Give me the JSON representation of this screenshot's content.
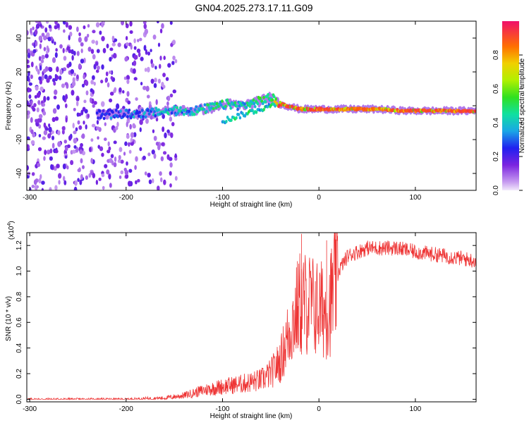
{
  "title": "GN04.2025.273.17.11.G09",
  "chart_data": [
    {
      "type": "heatmap",
      "name": "spectrogram",
      "xlabel": "Height of straight line (km)",
      "ylabel": "Frequency (Hz)",
      "xlim": [
        -303,
        163
      ],
      "ylim": [
        -50,
        50
      ],
      "x_ticks": [
        -300,
        -200,
        -100,
        0,
        100
      ],
      "y_ticks": [
        -40,
        -20,
        0,
        20,
        40
      ],
      "tick_labels_x": [
        "-300",
        "-200",
        "-100",
        "0",
        "100"
      ],
      "tick_labels_y": [
        "-40",
        "-20",
        "0",
        "20",
        "40"
      ],
      "colorbar": {
        "label": "Normalized spectral amplitude",
        "range": [
          0,
          1
        ],
        "ticks": [
          "0.0",
          "0.2",
          "0.4",
          "0.6",
          "0.8"
        ],
        "tick_values": [
          0,
          0.2,
          0.4,
          0.6,
          0.8
        ]
      },
      "ridge": [
        {
          "x": -230,
          "f": -5,
          "a": 0.3
        },
        {
          "x": -200,
          "f": -5,
          "a": 0.35
        },
        {
          "x": -170,
          "f": -4,
          "a": 0.4
        },
        {
          "x": -150,
          "f": -3,
          "a": 0.45
        },
        {
          "x": -130,
          "f": -3,
          "a": 0.45
        },
        {
          "x": -110,
          "f": -1,
          "a": 0.5
        },
        {
          "x": -95,
          "f": 1,
          "a": 0.5
        },
        {
          "x": -80,
          "f": 0,
          "a": 0.45
        },
        {
          "x": -65,
          "f": 2,
          "a": 0.5
        },
        {
          "x": -50,
          "f": 5,
          "a": 0.55
        },
        {
          "x": -40,
          "f": 1,
          "a": 0.95
        },
        {
          "x": -20,
          "f": -2,
          "a": 0.95
        },
        {
          "x": 20,
          "f": -2,
          "a": 0.95
        },
        {
          "x": 60,
          "f": -2,
          "a": 0.9
        },
        {
          "x": 90,
          "f": -3,
          "a": 0.95
        },
        {
          "x": 120,
          "f": -3,
          "a": 0.95
        },
        {
          "x": 160,
          "f": -3,
          "a": 0.95
        }
      ]
    },
    {
      "type": "line",
      "name": "snr",
      "xlabel": "Height of straight line (km)",
      "ylabel": "SNR (10 * v/v)",
      "y_multiplier": "(x10",
      "y_multiplier_exp": "4",
      "y_multiplier_close": ")",
      "xlim": [
        -303,
        163
      ],
      "ylim": [
        -0.02,
        1.3
      ],
      "x_ticks": [
        -300,
        -200,
        -100,
        0,
        100
      ],
      "y_ticks": [
        0.0,
        0.2,
        0.4,
        0.6,
        0.8,
        1.0,
        1.2
      ],
      "tick_labels_x": [
        "-300",
        "-200",
        "-100",
        "0",
        "100"
      ],
      "tick_labels_y": [
        "0.0",
        "0.2",
        "0.4",
        "0.6",
        "0.8",
        "1.0",
        "1.2"
      ],
      "color": "#ee3333",
      "envelope": [
        {
          "x": -303,
          "y": 0.0
        },
        {
          "x": -200,
          "y": 0.0
        },
        {
          "x": -160,
          "y": 0.01
        },
        {
          "x": -140,
          "y": 0.03
        },
        {
          "x": -120,
          "y": 0.07
        },
        {
          "x": -100,
          "y": 0.1
        },
        {
          "x": -80,
          "y": 0.12
        },
        {
          "x": -60,
          "y": 0.15
        },
        {
          "x": -50,
          "y": 0.2
        },
        {
          "x": -40,
          "y": 0.3
        },
        {
          "x": -30,
          "y": 0.55
        },
        {
          "x": -20,
          "y": 0.75
        },
        {
          "x": -10,
          "y": 0.75
        },
        {
          "x": 0,
          "y": 0.7
        },
        {
          "x": 10,
          "y": 0.7
        },
        {
          "x": 20,
          "y": 1.0
        },
        {
          "x": 30,
          "y": 1.12
        },
        {
          "x": 50,
          "y": 1.18
        },
        {
          "x": 80,
          "y": 1.18
        },
        {
          "x": 100,
          "y": 1.15
        },
        {
          "x": 130,
          "y": 1.12
        },
        {
          "x": 163,
          "y": 1.08
        }
      ],
      "spikes": [
        {
          "x": -18,
          "y": 1.29
        },
        {
          "x": 8,
          "y": 1.24
        },
        {
          "x": 10,
          "y": 0.35
        }
      ]
    }
  ]
}
